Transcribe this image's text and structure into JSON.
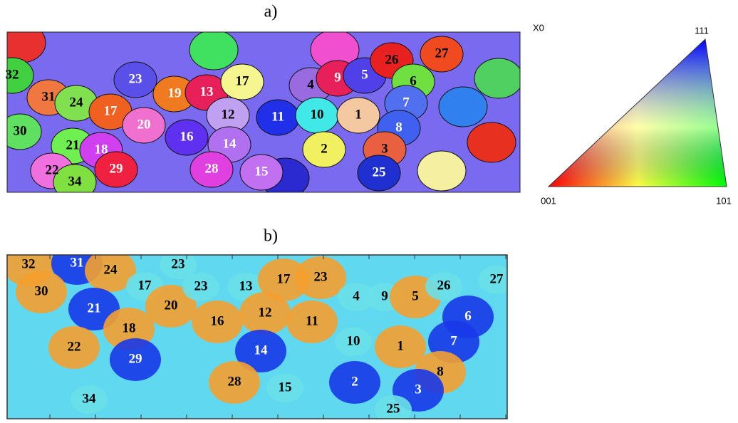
{
  "panels": [
    {
      "label": "a)",
      "grains": [
        {
          "label": "23"
        },
        {
          "label": "19"
        },
        {
          "label": "13"
        },
        {
          "label": "17"
        },
        {
          "label": "4"
        },
        {
          "label": "9"
        },
        {
          "label": "5"
        },
        {
          "label": "26"
        },
        {
          "label": "27"
        },
        {
          "label": "6"
        },
        {
          "label": "7"
        },
        {
          "label": "32"
        },
        {
          "label": "31"
        },
        {
          "label": "24"
        },
        {
          "label": "17"
        },
        {
          "label": "12"
        },
        {
          "label": "11"
        },
        {
          "label": "10"
        },
        {
          "label": "1"
        },
        {
          "label": "8"
        },
        {
          "label": "30"
        },
        {
          "label": "21"
        },
        {
          "label": "20"
        },
        {
          "label": "16"
        },
        {
          "label": "14"
        },
        {
          "label": "18"
        },
        {
          "label": "2"
        },
        {
          "label": "3"
        },
        {
          "label": "22"
        },
        {
          "label": "29"
        },
        {
          "label": "28"
        },
        {
          "label": "15"
        },
        {
          "label": "25"
        },
        {
          "label": "34"
        }
      ]
    },
    {
      "label": "b)",
      "grains": [
        {
          "label": "32"
        },
        {
          "label": "31"
        },
        {
          "label": "24"
        },
        {
          "label": "23"
        },
        {
          "label": "17"
        },
        {
          "label": "30"
        },
        {
          "label": "21"
        },
        {
          "label": "20"
        },
        {
          "label": "23"
        },
        {
          "label": "13"
        },
        {
          "label": "17"
        },
        {
          "label": "23"
        },
        {
          "label": "4"
        },
        {
          "label": "9"
        },
        {
          "label": "5"
        },
        {
          "label": "26"
        },
        {
          "label": "27"
        },
        {
          "label": "6"
        },
        {
          "label": "12"
        },
        {
          "label": "16"
        },
        {
          "label": "11"
        },
        {
          "label": "18"
        },
        {
          "label": "10"
        },
        {
          "label": "1"
        },
        {
          "label": "7"
        },
        {
          "label": "22"
        },
        {
          "label": "14"
        },
        {
          "label": "29"
        },
        {
          "label": "8"
        },
        {
          "label": "28"
        },
        {
          "label": "15"
        },
        {
          "label": "2"
        },
        {
          "label": "3"
        },
        {
          "label": "34"
        },
        {
          "label": "25"
        }
      ]
    }
  ],
  "legend": {
    "title": "X0",
    "top": "111",
    "left": "001",
    "right": "101"
  }
}
